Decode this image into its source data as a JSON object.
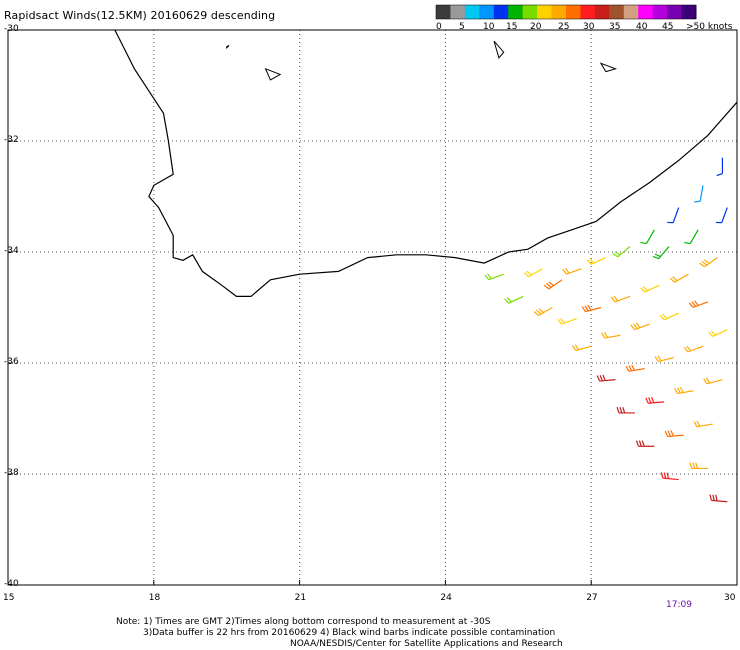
{
  "title": "Rapidsact Winds(12.5KM) 20160629 descending",
  "colorbar": {
    "colors": [
      "#3c3c3c",
      "#9a9a9a",
      "#00c8f0",
      "#0096ff",
      "#0032f0",
      "#00b400",
      "#78dc00",
      "#ffd200",
      "#ffaa00",
      "#ff6e00",
      "#ff1e1e",
      "#c81e1e",
      "#a0522d",
      "#d2a080",
      "#ff00ff",
      "#b400dc",
      "#7800b4",
      "#3c0078"
    ],
    "labels": [
      "0",
      "5",
      "10",
      "15",
      "20",
      "25",
      "30",
      "35",
      "40",
      "45",
      ">50 knots"
    ]
  },
  "lat_labels": [
    "-30",
    "-32",
    "-34",
    "-36",
    "-38",
    "-40"
  ],
  "lon_labels": [
    "15",
    "18",
    "21",
    "24",
    "27",
    "30"
  ],
  "timestamp": "17:09",
  "notes": {
    "line1": "Note: 1) Times are GMT 2)Times along bottom correspond to measurement at -30S",
    "line2": "3)Data buffer is 22 hrs from 20160629 4) Black wind barbs indicate possible contamination",
    "line3": "NOAA/NESDIS/Center for Satellite Applications and Research"
  },
  "map_data": {
    "lon_range": [
      15,
      30
    ],
    "lat_range": [
      -40,
      -30
    ],
    "grid": true,
    "coastline": [
      [
        17.2,
        -30
      ],
      [
        17.6,
        -30.7
      ],
      [
        18.2,
        -31.5
      ],
      [
        18.3,
        -32
      ],
      [
        18.4,
        -32.6
      ],
      [
        18.0,
        -32.8
      ],
      [
        17.9,
        -33.0
      ],
      [
        18.1,
        -33.2
      ],
      [
        18.4,
        -33.7
      ],
      [
        18.4,
        -34.1
      ],
      [
        18.6,
        -34.15
      ],
      [
        18.8,
        -34.05
      ],
      [
        18.9,
        -34.2
      ],
      [
        19.0,
        -34.35
      ],
      [
        19.4,
        -34.6
      ],
      [
        19.7,
        -34.8
      ],
      [
        20.0,
        -34.8
      ],
      [
        20.4,
        -34.5
      ],
      [
        21.0,
        -34.4
      ],
      [
        21.8,
        -34.35
      ],
      [
        22.4,
        -34.1
      ],
      [
        23.0,
        -34.05
      ],
      [
        23.6,
        -34.05
      ],
      [
        24.2,
        -34.1
      ],
      [
        24.8,
        -34.2
      ],
      [
        25.3,
        -34.0
      ],
      [
        25.7,
        -33.95
      ],
      [
        26.1,
        -33.75
      ],
      [
        26.6,
        -33.6
      ],
      [
        27.1,
        -33.45
      ],
      [
        27.6,
        -33.1
      ],
      [
        28.2,
        -32.75
      ],
      [
        28.8,
        -32.35
      ],
      [
        29.4,
        -31.9
      ],
      [
        30.0,
        -31.3
      ]
    ],
    "islands": [
      [
        [
          19.5,
          -30.3
        ],
        [
          19.55,
          -30.28
        ],
        [
          19.5,
          -30.32
        ]
      ],
      [
        [
          25.0,
          -30.2
        ],
        [
          25.2,
          -30.4
        ],
        [
          25.1,
          -30.5
        ]
      ],
      [
        [
          27.2,
          -30.6
        ],
        [
          27.5,
          -30.7
        ],
        [
          27.3,
          -30.75
        ]
      ],
      [
        [
          20.3,
          -30.7
        ],
        [
          20.6,
          -30.8
        ],
        [
          20.4,
          -30.9
        ]
      ]
    ],
    "wind_barbs": [
      {
        "lon": 26.0,
        "lat": -34.3,
        "dir": 240,
        "speed": 22
      },
      {
        "lon": 26.4,
        "lat": -34.5,
        "dir": 235,
        "speed": 27
      },
      {
        "lon": 26.8,
        "lat": -34.3,
        "dir": 250,
        "speed": 24
      },
      {
        "lon": 27.3,
        "lat": -34.1,
        "dir": 245,
        "speed": 20
      },
      {
        "lon": 27.8,
        "lat": -33.9,
        "dir": 230,
        "speed": 18
      },
      {
        "lon": 28.3,
        "lat": -33.6,
        "dir": 210,
        "speed": 14
      },
      {
        "lon": 28.8,
        "lat": -33.2,
        "dir": 200,
        "speed": 12
      },
      {
        "lon": 29.3,
        "lat": -32.8,
        "dir": 190,
        "speed": 11
      },
      {
        "lon": 29.7,
        "lat": -32.3,
        "dir": 180,
        "speed": 13
      },
      {
        "lon": 25.2,
        "lat": -34.4,
        "dir": 250,
        "speed": 17
      },
      {
        "lon": 25.6,
        "lat": -34.8,
        "dir": 245,
        "speed": 19
      },
      {
        "lon": 26.2,
        "lat": -35.0,
        "dir": 240,
        "speed": 25
      },
      {
        "lon": 26.7,
        "lat": -35.2,
        "dir": 250,
        "speed": 22
      },
      {
        "lon": 27.2,
        "lat": -35.0,
        "dir": 255,
        "speed": 26
      },
      {
        "lon": 27.8,
        "lat": -34.8,
        "dir": 250,
        "speed": 24
      },
      {
        "lon": 28.4,
        "lat": -34.6,
        "dir": 245,
        "speed": 21
      },
      {
        "lon": 29.0,
        "lat": -34.4,
        "dir": 240,
        "speed": 23
      },
      {
        "lon": 29.6,
        "lat": -34.1,
        "dir": 235,
        "speed": 25
      },
      {
        "lon": 28.6,
        "lat": -33.9,
        "dir": 220,
        "speed": 16
      },
      {
        "lon": 29.2,
        "lat": -33.6,
        "dir": 210,
        "speed": 14
      },
      {
        "lon": 29.8,
        "lat": -33.2,
        "dir": 200,
        "speed": 12
      },
      {
        "lon": 27.0,
        "lat": -35.7,
        "dir": 255,
        "speed": 24
      },
      {
        "lon": 27.6,
        "lat": -35.5,
        "dir": 260,
        "speed": 23
      },
      {
        "lon": 28.2,
        "lat": -35.3,
        "dir": 250,
        "speed": 25
      },
      {
        "lon": 28.8,
        "lat": -35.1,
        "dir": 245,
        "speed": 22
      },
      {
        "lon": 29.4,
        "lat": -34.9,
        "dir": 250,
        "speed": 26
      },
      {
        "lon": 27.5,
        "lat": -36.3,
        "dir": 265,
        "speed": 31
      },
      {
        "lon": 28.1,
        "lat": -36.1,
        "dir": 260,
        "speed": 27
      },
      {
        "lon": 28.7,
        "lat": -35.9,
        "dir": 255,
        "speed": 24
      },
      {
        "lon": 29.3,
        "lat": -35.7,
        "dir": 250,
        "speed": 23
      },
      {
        "lon": 29.8,
        "lat": -35.4,
        "dir": 245,
        "speed": 22
      },
      {
        "lon": 27.9,
        "lat": -36.9,
        "dir": 270,
        "speed": 32
      },
      {
        "lon": 28.5,
        "lat": -36.7,
        "dir": 265,
        "speed": 28
      },
      {
        "lon": 29.1,
        "lat": -36.5,
        "dir": 260,
        "speed": 25
      },
      {
        "lon": 29.7,
        "lat": -36.3,
        "dir": 255,
        "speed": 24
      },
      {
        "lon": 28.3,
        "lat": -37.5,
        "dir": 270,
        "speed": 31
      },
      {
        "lon": 28.9,
        "lat": -37.3,
        "dir": 265,
        "speed": 26
      },
      {
        "lon": 29.5,
        "lat": -37.1,
        "dir": 260,
        "speed": 24
      },
      {
        "lon": 28.8,
        "lat": -38.1,
        "dir": 275,
        "speed": 28
      },
      {
        "lon": 29.4,
        "lat": -37.9,
        "dir": 270,
        "speed": 25
      },
      {
        "lon": 29.8,
        "lat": -38.5,
        "dir": 275,
        "speed": 31
      }
    ]
  }
}
